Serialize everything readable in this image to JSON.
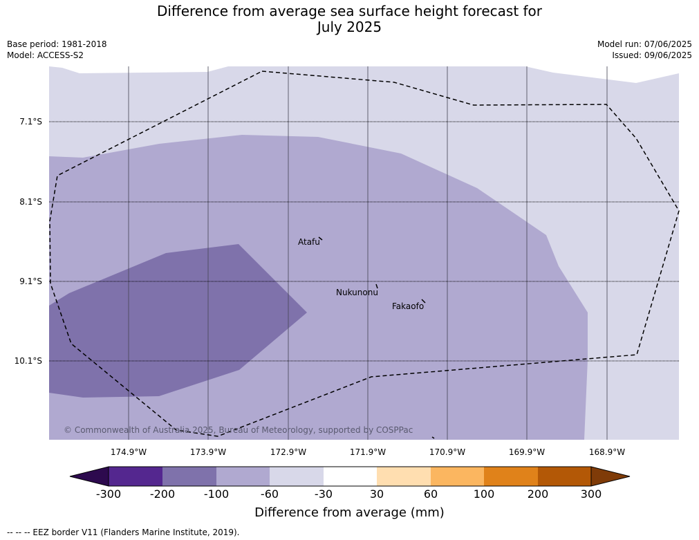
{
  "title_line1": "Difference from average sea surface height forecast for",
  "title_line2": "July 2025",
  "meta_left": {
    "base_period": "Base period: 1981-2018",
    "model": "Model: ACCESS-S2"
  },
  "meta_right": {
    "model_run": "Model run: 07/06/2025",
    "issued": "Issued: 09/06/2025"
  },
  "latitude_labels": [
    "7.1°S",
    "8.1°S",
    "9.1°S",
    "10.1°S"
  ],
  "longitude_labels": [
    "174.9°W",
    "173.9°W",
    "172.9°W",
    "171.9°W",
    "170.9°W",
    "169.9°W",
    "168.9°W"
  ],
  "places": [
    {
      "name": "Atafu"
    },
    {
      "name": "Nukunonu"
    },
    {
      "name": "Fakaofo"
    }
  ],
  "copyright": "© Commonwealth of Australia 2025, Bureau of Meteorology, supported by COSPPac",
  "colorbar": {
    "labels": [
      "-300",
      "-200",
      "-100",
      "-60",
      "-30",
      "30",
      "60",
      "100",
      "200",
      "300"
    ],
    "colors": [
      "#2d0a4e",
      "#54278f",
      "#7f72ab",
      "#b0a9d0",
      "#d8d8e9",
      "#ffffff",
      "#ffdeb0",
      "#fbb660",
      "#e0821a",
      "#b35806",
      "#7f3b08"
    ],
    "title": "Difference from average (mm)"
  },
  "map_colors": {
    "band_minus30_minus60": "#d8d8e9",
    "band_minus60_minus100": "#b0a9d0",
    "band_minus100_minus200": "#7f72ab"
  },
  "footer": "--  --  -- EEZ border V11 (Flanders Marine Institute, 2019)."
}
